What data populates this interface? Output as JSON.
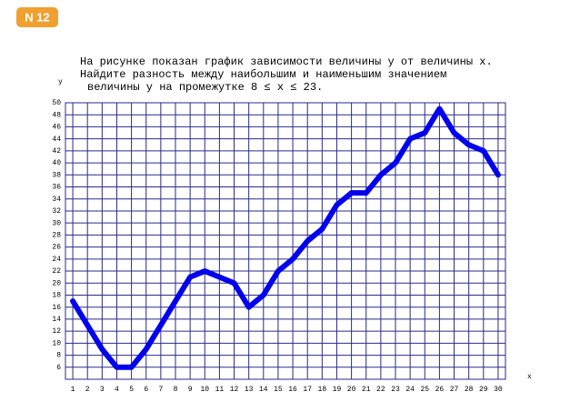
{
  "badge": "N 12",
  "chart_data": {
    "type": "line",
    "title": [
      "На рисунке показан график зависимости величины y от величины x.",
      "Найдите разность между наибольшим и наименьшим значением",
      "величины y на промежутке 8 ≤ x ≤ 23."
    ],
    "x_label": "x",
    "y_label": "y",
    "x": [
      1,
      2,
      3,
      4,
      5,
      6,
      7,
      8,
      9,
      10,
      11,
      12,
      13,
      14,
      15,
      16,
      17,
      18,
      19,
      20,
      21,
      22,
      23,
      24,
      25,
      26,
      27,
      28,
      29,
      30
    ],
    "series": [
      {
        "name": "y",
        "color": "#0000ee",
        "values": [
          17,
          13,
          9,
          6,
          6,
          9,
          13,
          17,
          21,
          22,
          21,
          20,
          16,
          18,
          22,
          24,
          27,
          29,
          33,
          35,
          35,
          38,
          40,
          44,
          45,
          49,
          45,
          43,
          42,
          38
        ]
      }
    ],
    "xlim": [
      0.5,
      30.5
    ],
    "xticks": [
      1,
      2,
      3,
      4,
      5,
      6,
      7,
      8,
      9,
      10,
      11,
      12,
      13,
      14,
      15,
      16,
      17,
      18,
      19,
      20,
      21,
      22,
      23,
      24,
      25,
      26,
      27,
      28,
      29,
      30
    ],
    "ylim": [
      4,
      50
    ],
    "yticks": [
      6,
      8,
      10,
      12,
      14,
      16,
      18,
      20,
      22,
      24,
      26,
      28,
      30,
      32,
      34,
      36,
      38,
      40,
      42,
      44,
      46,
      48,
      50
    ],
    "grid": true
  }
}
